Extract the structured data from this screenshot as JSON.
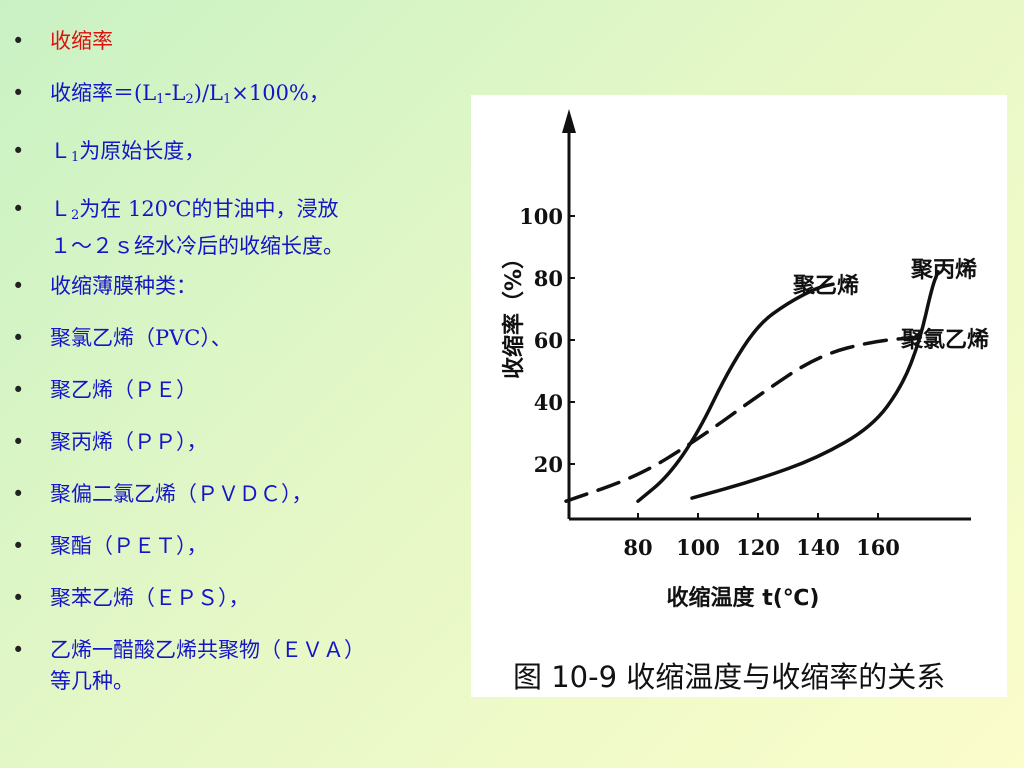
{
  "bullets": [
    {
      "text": "收缩率"
    },
    {
      "formula": {
        "lead": "收缩率＝(L",
        "s1": "1",
        "mid1": "-L",
        "s2": "2",
        "mid2": ")/L",
        "s3": "1",
        "tail": "×100%，"
      }
    },
    {
      "pre": "Ｌ",
      "sub": "1",
      "text": "为原始长度，"
    },
    {
      "pre": "Ｌ",
      "sub": "2",
      "text": "为在 120℃的甘油中，浸放",
      "line2": "１～２ｓ经水冷后的收缩长度。"
    },
    {
      "text": "收缩薄膜种类："
    },
    {
      "text": "聚氯乙烯（PVC）、"
    },
    {
      "text": "聚乙烯（ＰＥ）"
    },
    {
      "text": "聚丙烯（ＰＰ），"
    },
    {
      "text": "聚偏二氯乙烯（ＰＶＤＣ），"
    },
    {
      "text": "聚酯（ＰＥＴ），"
    },
    {
      "text": "聚苯乙烯（ＥＰＳ），"
    },
    {
      "text": "乙烯一醋酸乙烯共聚物（ＥＶＡ）",
      "line2": "等几种。"
    }
  ],
  "bullet_symbol": "•",
  "colors": {
    "title": "#e01010",
    "body": "#1515c8",
    "axis": "#111111"
  },
  "chart_data": {
    "type": "line",
    "caption": "图 10-9   收缩温度与收缩率的关系",
    "xlabel": "收缩温度 t(℃)",
    "ylabel": "收缩率（%）",
    "x_ticks": [
      80,
      100,
      120,
      140,
      160
    ],
    "y_ticks": [
      20,
      40,
      60,
      80,
      100
    ],
    "series": [
      {
        "name": "聚乙烯",
        "style": "solid",
        "points": [
          [
            80,
            8
          ],
          [
            90,
            16
          ],
          [
            100,
            30
          ],
          [
            110,
            50
          ],
          [
            120,
            65
          ],
          [
            130,
            72
          ],
          [
            140,
            77
          ],
          [
            145,
            78
          ]
        ]
      },
      {
        "name": "聚丙烯",
        "style": "solid",
        "points": [
          [
            98,
            9
          ],
          [
            120,
            15
          ],
          [
            140,
            22
          ],
          [
            158,
            32
          ],
          [
            168,
            45
          ],
          [
            174,
            60
          ],
          [
            178,
            77
          ],
          [
            180,
            82
          ]
        ]
      },
      {
        "name": "聚氯乙烯",
        "style": "dashed",
        "points": [
          [
            56,
            8
          ],
          [
            80,
            16
          ],
          [
            100,
            28
          ],
          [
            120,
            42
          ],
          [
            140,
            55
          ],
          [
            160,
            60
          ],
          [
            178,
            61
          ]
        ]
      }
    ]
  }
}
